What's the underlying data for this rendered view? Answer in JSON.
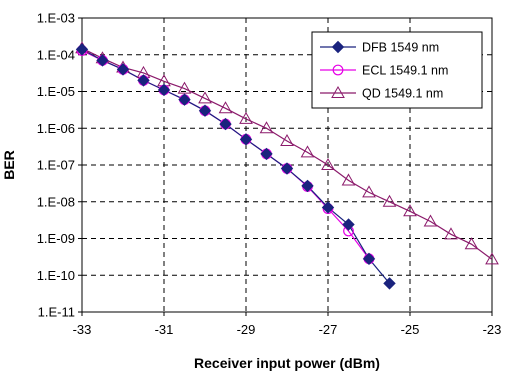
{
  "chart_data": {
    "type": "line",
    "title": "",
    "xlabel": "Receiver input power (dBm)",
    "ylabel": "BER",
    "xlim": [
      -33,
      -23
    ],
    "ylim": [
      1e-11,
      0.001
    ],
    "yscale": "log",
    "grid": true,
    "legend_position": "top-right",
    "x_ticks": [
      -33,
      -31,
      -29,
      -27,
      -25,
      -23
    ],
    "x_tick_labels": [
      "-33",
      "-31",
      "-29",
      "-27",
      "-25",
      "-23"
    ],
    "y_ticks": [
      0.001,
      0.0001,
      1e-05,
      1e-06,
      1e-07,
      1e-08,
      1e-09,
      1e-10,
      1e-11
    ],
    "y_tick_labels": [
      "1.E-03",
      "1.E-04",
      "1.E-05",
      "1.E-06",
      "1.E-07",
      "1.E-08",
      "1.E-09",
      "1.E-10",
      "1.E-11"
    ],
    "series": [
      {
        "name": "DFB 1549 nm",
        "marker": "diamond",
        "color": "#1a237e",
        "x": [
          -33,
          -32.5,
          -32,
          -31.5,
          -31,
          -30.5,
          -30,
          -29.5,
          -29,
          -28.5,
          -28,
          -27.5,
          -27,
          -26.5,
          -26,
          -25.5
        ],
        "y": [
          0.00014,
          7e-05,
          4e-05,
          2e-05,
          1.1e-05,
          6e-06,
          3e-06,
          1.3e-06,
          5e-07,
          2e-07,
          8e-08,
          2.7e-08,
          7e-09,
          2.4e-09,
          2.8e-10,
          6e-11
        ]
      },
      {
        "name": "ECL 1549.1 nm",
        "marker": "circle",
        "color": "#e600e6",
        "x": [
          -33,
          -32.5,
          -32,
          -31.5,
          -31,
          -30.5,
          -30,
          -29.5,
          -29,
          -28.5,
          -28,
          -27.5,
          -27,
          -26.5,
          -26
        ],
        "y": [
          0.00013,
          7e-05,
          4e-05,
          2e-05,
          1.1e-05,
          6e-06,
          3e-06,
          1.3e-06,
          5e-07,
          2e-07,
          8e-08,
          2.6e-08,
          6.5e-09,
          1.6e-09,
          2.8e-10
        ]
      },
      {
        "name": "QD 1549.1 nm",
        "marker": "triangle",
        "color": "#8b1a6b",
        "x": [
          -33,
          -32.5,
          -32,
          -31.5,
          -31,
          -30.5,
          -30,
          -29.5,
          -29,
          -28.5,
          -28,
          -27.5,
          -27,
          -26.5,
          -26,
          -25.5,
          -25,
          -24.5,
          -24,
          -23.5,
          -23
        ],
        "y": [
          0.00015,
          8e-05,
          4.5e-05,
          3.2e-05,
          1.9e-05,
          1.2e-05,
          6.5e-06,
          3.5e-06,
          1.8e-06,
          1e-06,
          4.5e-07,
          2.2e-07,
          1e-07,
          3.8e-08,
          1.8e-08,
          1e-08,
          5.5e-09,
          2.9e-09,
          1.3e-09,
          7e-10,
          2.7e-10
        ]
      }
    ]
  }
}
